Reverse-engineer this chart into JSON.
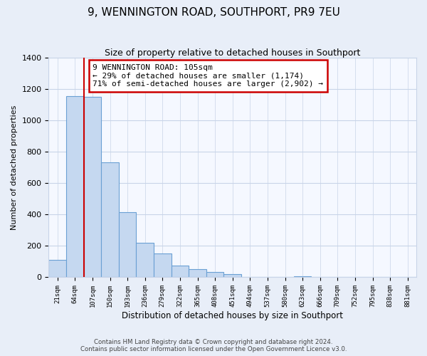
{
  "title": "9, WENNINGTON ROAD, SOUTHPORT, PR9 7EU",
  "subtitle": "Size of property relative to detached houses in Southport",
  "xlabel": "Distribution of detached houses by size in Southport",
  "ylabel": "Number of detached properties",
  "bin_labels": [
    "21sqm",
    "64sqm",
    "107sqm",
    "150sqm",
    "193sqm",
    "236sqm",
    "279sqm",
    "322sqm",
    "365sqm",
    "408sqm",
    "451sqm",
    "494sqm",
    "537sqm",
    "580sqm",
    "623sqm",
    "666sqm",
    "709sqm",
    "752sqm",
    "795sqm",
    "838sqm",
    "881sqm"
  ],
  "bar_values": [
    110,
    1155,
    1150,
    730,
    415,
    220,
    150,
    75,
    50,
    35,
    20,
    0,
    0,
    0,
    5,
    0,
    0,
    0,
    0,
    0,
    0
  ],
  "bar_color": "#c5d8f0",
  "bar_edge_color": "#6aa0d4",
  "marker_line_color": "#cc0000",
  "annotation_text": "9 WENNINGTON ROAD: 105sqm\n← 29% of detached houses are smaller (1,174)\n71% of semi-detached houses are larger (2,902) →",
  "annotation_box_color": "#ffffff",
  "annotation_box_edge": "#cc0000",
  "ylim": [
    0,
    1400
  ],
  "yticks": [
    0,
    200,
    400,
    600,
    800,
    1000,
    1200,
    1400
  ],
  "footer_line1": "Contains HM Land Registry data © Crown copyright and database right 2024.",
  "footer_line2": "Contains public sector information licensed under the Open Government Licence v3.0.",
  "bg_color": "#e8eef8",
  "plot_bg_color": "#f5f8ff",
  "grid_color": "#c8d4e8",
  "title_fontsize": 11,
  "subtitle_fontsize": 9
}
